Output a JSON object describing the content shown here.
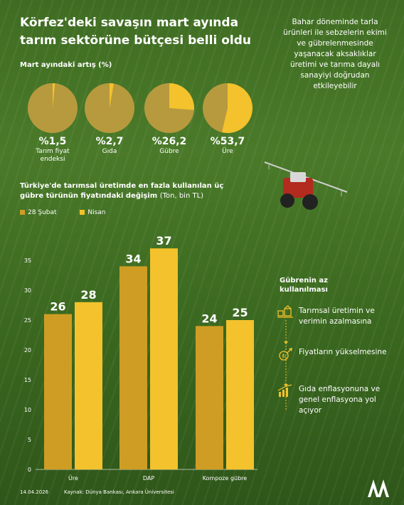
{
  "title": "Körfez'deki savaşın mart ayında tarım sektörüne bütçesi belli oldu",
  "side_note": "Bahar döneminde tarla ürünleri ile sebzelerin ekimi ve gübrelenmesinde yaşanacak aksaklıklar üretimi ve tarıma dayalı sanayiyi doğrudan etkileyebilir",
  "pies": {
    "subtitle": "Mart ayındaki artış (%)",
    "items": [
      {
        "value_label": "%1,5",
        "label": "Tarım fiyat endeksi",
        "percent": 1.5
      },
      {
        "value_label": "%2,7",
        "label": "Gıda",
        "percent": 2.7
      },
      {
        "value_label": "%26,2",
        "label": "Gübre",
        "percent": 26.2
      },
      {
        "value_label": "%53,7",
        "label": "Üre",
        "percent": 53.7
      }
    ],
    "colors": {
      "base": "#b79a3e",
      "slice": "#f3c22c"
    }
  },
  "chart": {
    "title": "Türkiye'de tarımsal üretimde en fazla kullanılan üç gübre türünün fiyatındaki değişim",
    "unit": "(Ton, bin TL)"
  },
  "chart_data": {
    "type": "bar",
    "categories": [
      "Üre",
      "DAP",
      "Kompoze gübre"
    ],
    "series": [
      {
        "name": "28 Şubat",
        "values": [
          26,
          34,
          24
        ],
        "color": "#cf9d24"
      },
      {
        "name": "Nisan",
        "values": [
          28,
          37,
          25
        ],
        "color": "#f3c22c"
      }
    ],
    "ylim": [
      0,
      40
    ],
    "yticks": [
      0,
      5,
      10,
      15,
      20,
      25,
      30,
      35
    ],
    "grid": false,
    "legend": "top-left"
  },
  "gubre": {
    "title": "Gübrenin az kullanılması",
    "items": [
      {
        "label": "Tarımsal üretimin ve verimin azalmasına",
        "icon": "farm-production-icon"
      },
      {
        "label": "Fiyatların yükselmesine",
        "icon": "price-rise-icon"
      },
      {
        "label": "Gıda enflasyonuna ve genel enflasyona yol açıyor",
        "icon": "inflation-icon"
      }
    ],
    "accent": "#f3c22c"
  },
  "footer": {
    "date": "14.04.2026",
    "source": "Kaynak: Dünya Bankası, Ankara Üniversitesi",
    "logo_text": "AA"
  }
}
